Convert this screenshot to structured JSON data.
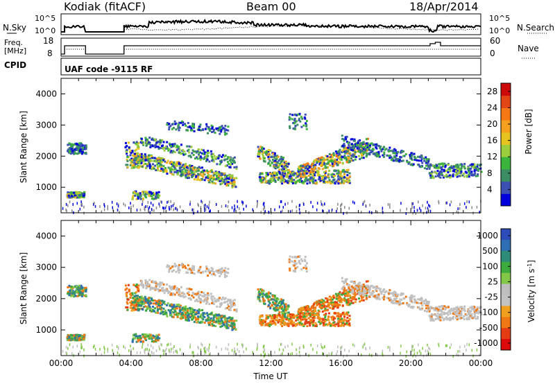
{
  "header": {
    "title": "Kodiak (fitACF)",
    "beam": "Beam 00",
    "date": "18/Apr/2014"
  },
  "noise_panel": {
    "left_label": "N.Sky",
    "right_label": "N.Search",
    "ytick_top": "10^5",
    "ytick_bottom": "10^0"
  },
  "freq_panel": {
    "left_label_1": "Freq.",
    "left_label_2": "[MHz]",
    "right_label": "Nave",
    "left_ticks": [
      "18",
      "8"
    ],
    "right_ticks": [
      "60",
      "0"
    ]
  },
  "cpid_panel": {
    "label": "CPID",
    "text": "UAF code -9115 RF"
  },
  "colors": {
    "power_scale": [
      "#0000dd",
      "#3c50b4",
      "#3c8c64",
      "#3cb43c",
      "#9bcd3c",
      "#e6c31e",
      "#f5a01e",
      "#f57814",
      "#e14614",
      "#cd0a0a"
    ],
    "velocity_scale": [
      "#2d4bb9",
      "#2e6eb4",
      "#2e8c78",
      "#3caa3c",
      "#82c846",
      "#bebebe",
      "#c3c3c3",
      "#f0a01e",
      "#f07814",
      "#e63c14",
      "#dc0a0a"
    ]
  },
  "chart_data": [
    {
      "type": "heatmap",
      "panel": "power",
      "ylabel": "Slant Range [km]",
      "yticks": [
        1000,
        2000,
        3000,
        4000
      ],
      "ylim": [
        180,
        4500
      ],
      "xlim_hours": [
        0,
        24
      ],
      "colorbar_label": "Power [dB]",
      "colorbar_ticks": [
        "4",
        "8",
        "12",
        "16",
        "20",
        "24",
        "28"
      ],
      "colorbar_range": [
        0,
        30
      ]
    },
    {
      "type": "heatmap",
      "panel": "velocity",
      "ylabel": "Slant Range [km]",
      "yticks": [
        1000,
        2000,
        3000,
        4000
      ],
      "ylim": [
        180,
        4500
      ],
      "xlim_hours": [
        0,
        24
      ],
      "xlabel": "Time UT",
      "xticks": [
        "00:00",
        "04:00",
        "08:00",
        "12:00",
        "16:00",
        "20:00",
        "00:00"
      ],
      "colorbar_label": "Velocity [m s^-1]",
      "colorbar_ticks": [
        "1000",
        "500",
        "100",
        "25",
        "-25",
        "-100",
        "-500",
        "-1000"
      ]
    }
  ]
}
